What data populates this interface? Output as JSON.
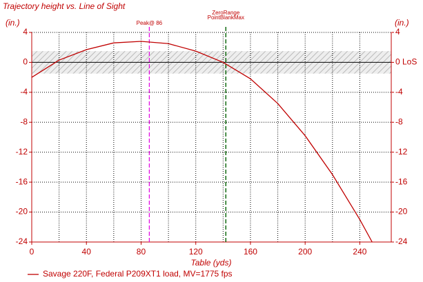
{
  "chart_data": {
    "type": "line",
    "title": "Trajectory height vs. Line of Sight",
    "xlabel": "Table (yds)",
    "ylabel": "(in.)",
    "y2label": "(in.)",
    "los_label": "LoS",
    "x": [
      0,
      20,
      40,
      60,
      80,
      100,
      120,
      140,
      160,
      180,
      200,
      220,
      240,
      249
    ],
    "series": [
      {
        "name": "Savage 220F, Federal P209XT1 load,  MV=1775 fps",
        "color": "#c00000",
        "values": [
          -2,
          0.3,
          1.7,
          2.6,
          2.8,
          2.5,
          1.5,
          0,
          -2.2,
          -5.5,
          -9.8,
          -15,
          -21,
          -24
        ]
      }
    ],
    "xlim": [
      0,
      263
    ],
    "xticks": [
      0,
      40,
      80,
      120,
      160,
      200,
      240
    ],
    "xminorticks": [
      20,
      60,
      100,
      140,
      180,
      220
    ],
    "ylim": [
      -24,
      4
    ],
    "yticks": [
      4,
      0,
      -4,
      -8,
      -12,
      -16,
      -20,
      -24
    ],
    "y2lim": [
      -24,
      4
    ],
    "y2ticks": [
      4,
      0,
      -4,
      -8,
      -12,
      -16,
      -20,
      -24
    ],
    "band": [
      -1.5,
      1.5
    ],
    "markers": [
      {
        "label": "Peak@ 86",
        "x": 86,
        "color": "#e000e0"
      },
      {
        "label": "ZeroRange",
        "x": 142,
        "color": "#006000"
      },
      {
        "label": "PointBlankMax",
        "x": 142,
        "color": "#006000"
      }
    ],
    "grid": true
  }
}
